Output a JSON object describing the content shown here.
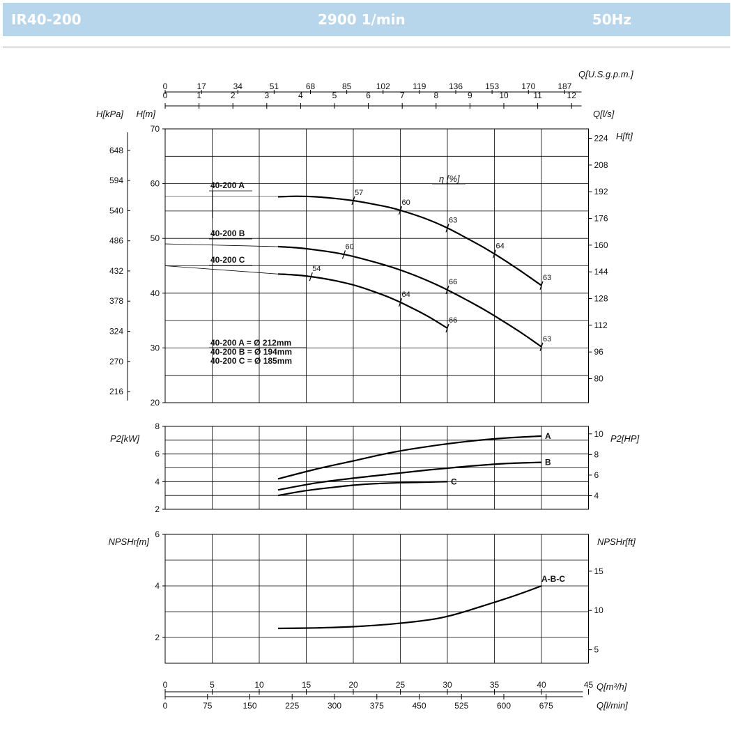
{
  "header": {
    "model": "IR40-200",
    "speed": "2900 1/min",
    "frequency": "50Hz"
  },
  "colors": {
    "header_bg": "#b7d6ec",
    "header_text": "#ffffff",
    "grid": "#000000",
    "curve": "#000000"
  },
  "chart_data": {
    "type": "line",
    "x_axes": {
      "q_m3h": {
        "label": "Q[m³/h]",
        "ticks": [
          0,
          5,
          10,
          15,
          20,
          25,
          30,
          35,
          40,
          45
        ]
      },
      "q_lmin": {
        "label": "Q[l/min]",
        "ticks": [
          0,
          75,
          150,
          225,
          300,
          375,
          450,
          525,
          600,
          675
        ]
      },
      "q_ls": {
        "label": "Q[l/s]",
        "ticks": [
          0,
          1,
          2,
          3,
          4,
          5,
          6,
          7,
          8,
          9,
          10,
          11,
          12
        ]
      },
      "q_usgpm": {
        "label": "Q[U.S.g.p.m.]",
        "ticks": [
          0,
          17,
          34,
          51,
          68,
          85,
          102,
          119,
          136,
          153,
          170,
          187
        ]
      }
    },
    "head": {
      "ylabel_left": "H[m]",
      "ylabel_kpa": "H[kPa]",
      "ylabel_right": "H[ft]",
      "ylim": [
        20,
        70
      ],
      "yticks": [
        20,
        30,
        40,
        50,
        60,
        70
      ],
      "kpa_ticks": [
        216,
        270,
        324,
        378,
        432,
        486,
        540,
        594,
        648
      ],
      "ft_ticks": [
        80,
        96,
        112,
        128,
        144,
        160,
        176,
        192,
        208,
        224
      ],
      "eta_label": "η [%]",
      "legend": [
        "40-200 A = Ø 212mm",
        "40-200 B = Ø 194mm",
        "40-200 C = Ø 185mm"
      ],
      "series": [
        {
          "name": "40-200 A",
          "x": [
            12,
            14,
            16,
            18,
            20,
            22,
            24,
            26,
            28,
            30,
            32,
            34,
            36,
            38,
            40
          ],
          "y": [
            57.6,
            57.7,
            57.6,
            57.3,
            56.9,
            56.3,
            55.6,
            54.6,
            53.4,
            51.9,
            50.1,
            48.2,
            46.1,
            43.8,
            41.4
          ]
        },
        {
          "name": "40-200 B",
          "x": [
            0,
            12,
            14,
            16,
            18,
            20,
            22,
            24,
            26,
            28,
            30,
            32,
            34,
            36,
            38,
            40
          ],
          "y": [
            49.0,
            48.5,
            48.3,
            47.9,
            47.4,
            46.7,
            45.8,
            44.8,
            43.6,
            42.2,
            40.6,
            38.8,
            36.9,
            34.8,
            32.6,
            30.2
          ]
        },
        {
          "name": "40-200 C",
          "x": [
            0,
            12,
            14,
            16,
            18,
            20,
            22,
            24,
            26,
            28,
            30
          ],
          "y": [
            45.0,
            43.5,
            43.3,
            42.9,
            42.3,
            41.5,
            40.4,
            39.1,
            37.5,
            35.7,
            33.6
          ]
        }
      ],
      "efficiency_marks": [
        {
          "curve": "A",
          "x": 20,
          "eta": "57"
        },
        {
          "curve": "A",
          "x": 25,
          "eta": "60"
        },
        {
          "curve": "A",
          "x": 30,
          "eta": "63"
        },
        {
          "curve": "A",
          "x": 35,
          "eta": "64"
        },
        {
          "curve": "A",
          "x": 40,
          "eta": "63"
        },
        {
          "curve": "B",
          "x": 19,
          "eta": "60"
        },
        {
          "curve": "B",
          "x": 30,
          "eta": "66"
        },
        {
          "curve": "B",
          "x": 40,
          "eta": "63"
        },
        {
          "curve": "C",
          "x": 15.5,
          "eta": "54"
        },
        {
          "curve": "C",
          "x": 25,
          "eta": "64"
        },
        {
          "curve": "C",
          "x": 30,
          "eta": "66"
        }
      ]
    },
    "power": {
      "ylabel_left": "P2[kW]",
      "ylabel_right": "P2[HP]",
      "ylim": [
        2,
        8
      ],
      "yticks": [
        2,
        4,
        6,
        8
      ],
      "hp_ticks": [
        4,
        6,
        8,
        10
      ],
      "series": [
        {
          "name": "A",
          "x": [
            12,
            16,
            20,
            24,
            28,
            32,
            36,
            40
          ],
          "y": [
            4.2,
            4.9,
            5.5,
            6.1,
            6.55,
            6.9,
            7.15,
            7.3
          ]
        },
        {
          "name": "B",
          "x": [
            12,
            16,
            20,
            24,
            28,
            32,
            36,
            40
          ],
          "y": [
            3.4,
            3.9,
            4.25,
            4.55,
            4.85,
            5.1,
            5.3,
            5.4
          ]
        },
        {
          "name": "C",
          "x": [
            12,
            15,
            18,
            21,
            24,
            27,
            30
          ],
          "y": [
            3.0,
            3.35,
            3.6,
            3.8,
            3.9,
            3.95,
            4.0
          ]
        }
      ]
    },
    "npsh": {
      "ylabel_left": "NPSHr[m]",
      "ylabel_right": "NPSHr[ft]",
      "ylim": [
        1,
        6
      ],
      "yticks": [
        2,
        4,
        6
      ],
      "ft_ticks": [
        5,
        10,
        15
      ],
      "series": [
        {
          "name": "A-B-C",
          "x": [
            12,
            16,
            20,
            24,
            28,
            30,
            32,
            34,
            36,
            38,
            40
          ],
          "y": [
            2.35,
            2.37,
            2.42,
            2.52,
            2.68,
            2.82,
            3.02,
            3.25,
            3.48,
            3.73,
            4.0
          ]
        }
      ]
    }
  }
}
